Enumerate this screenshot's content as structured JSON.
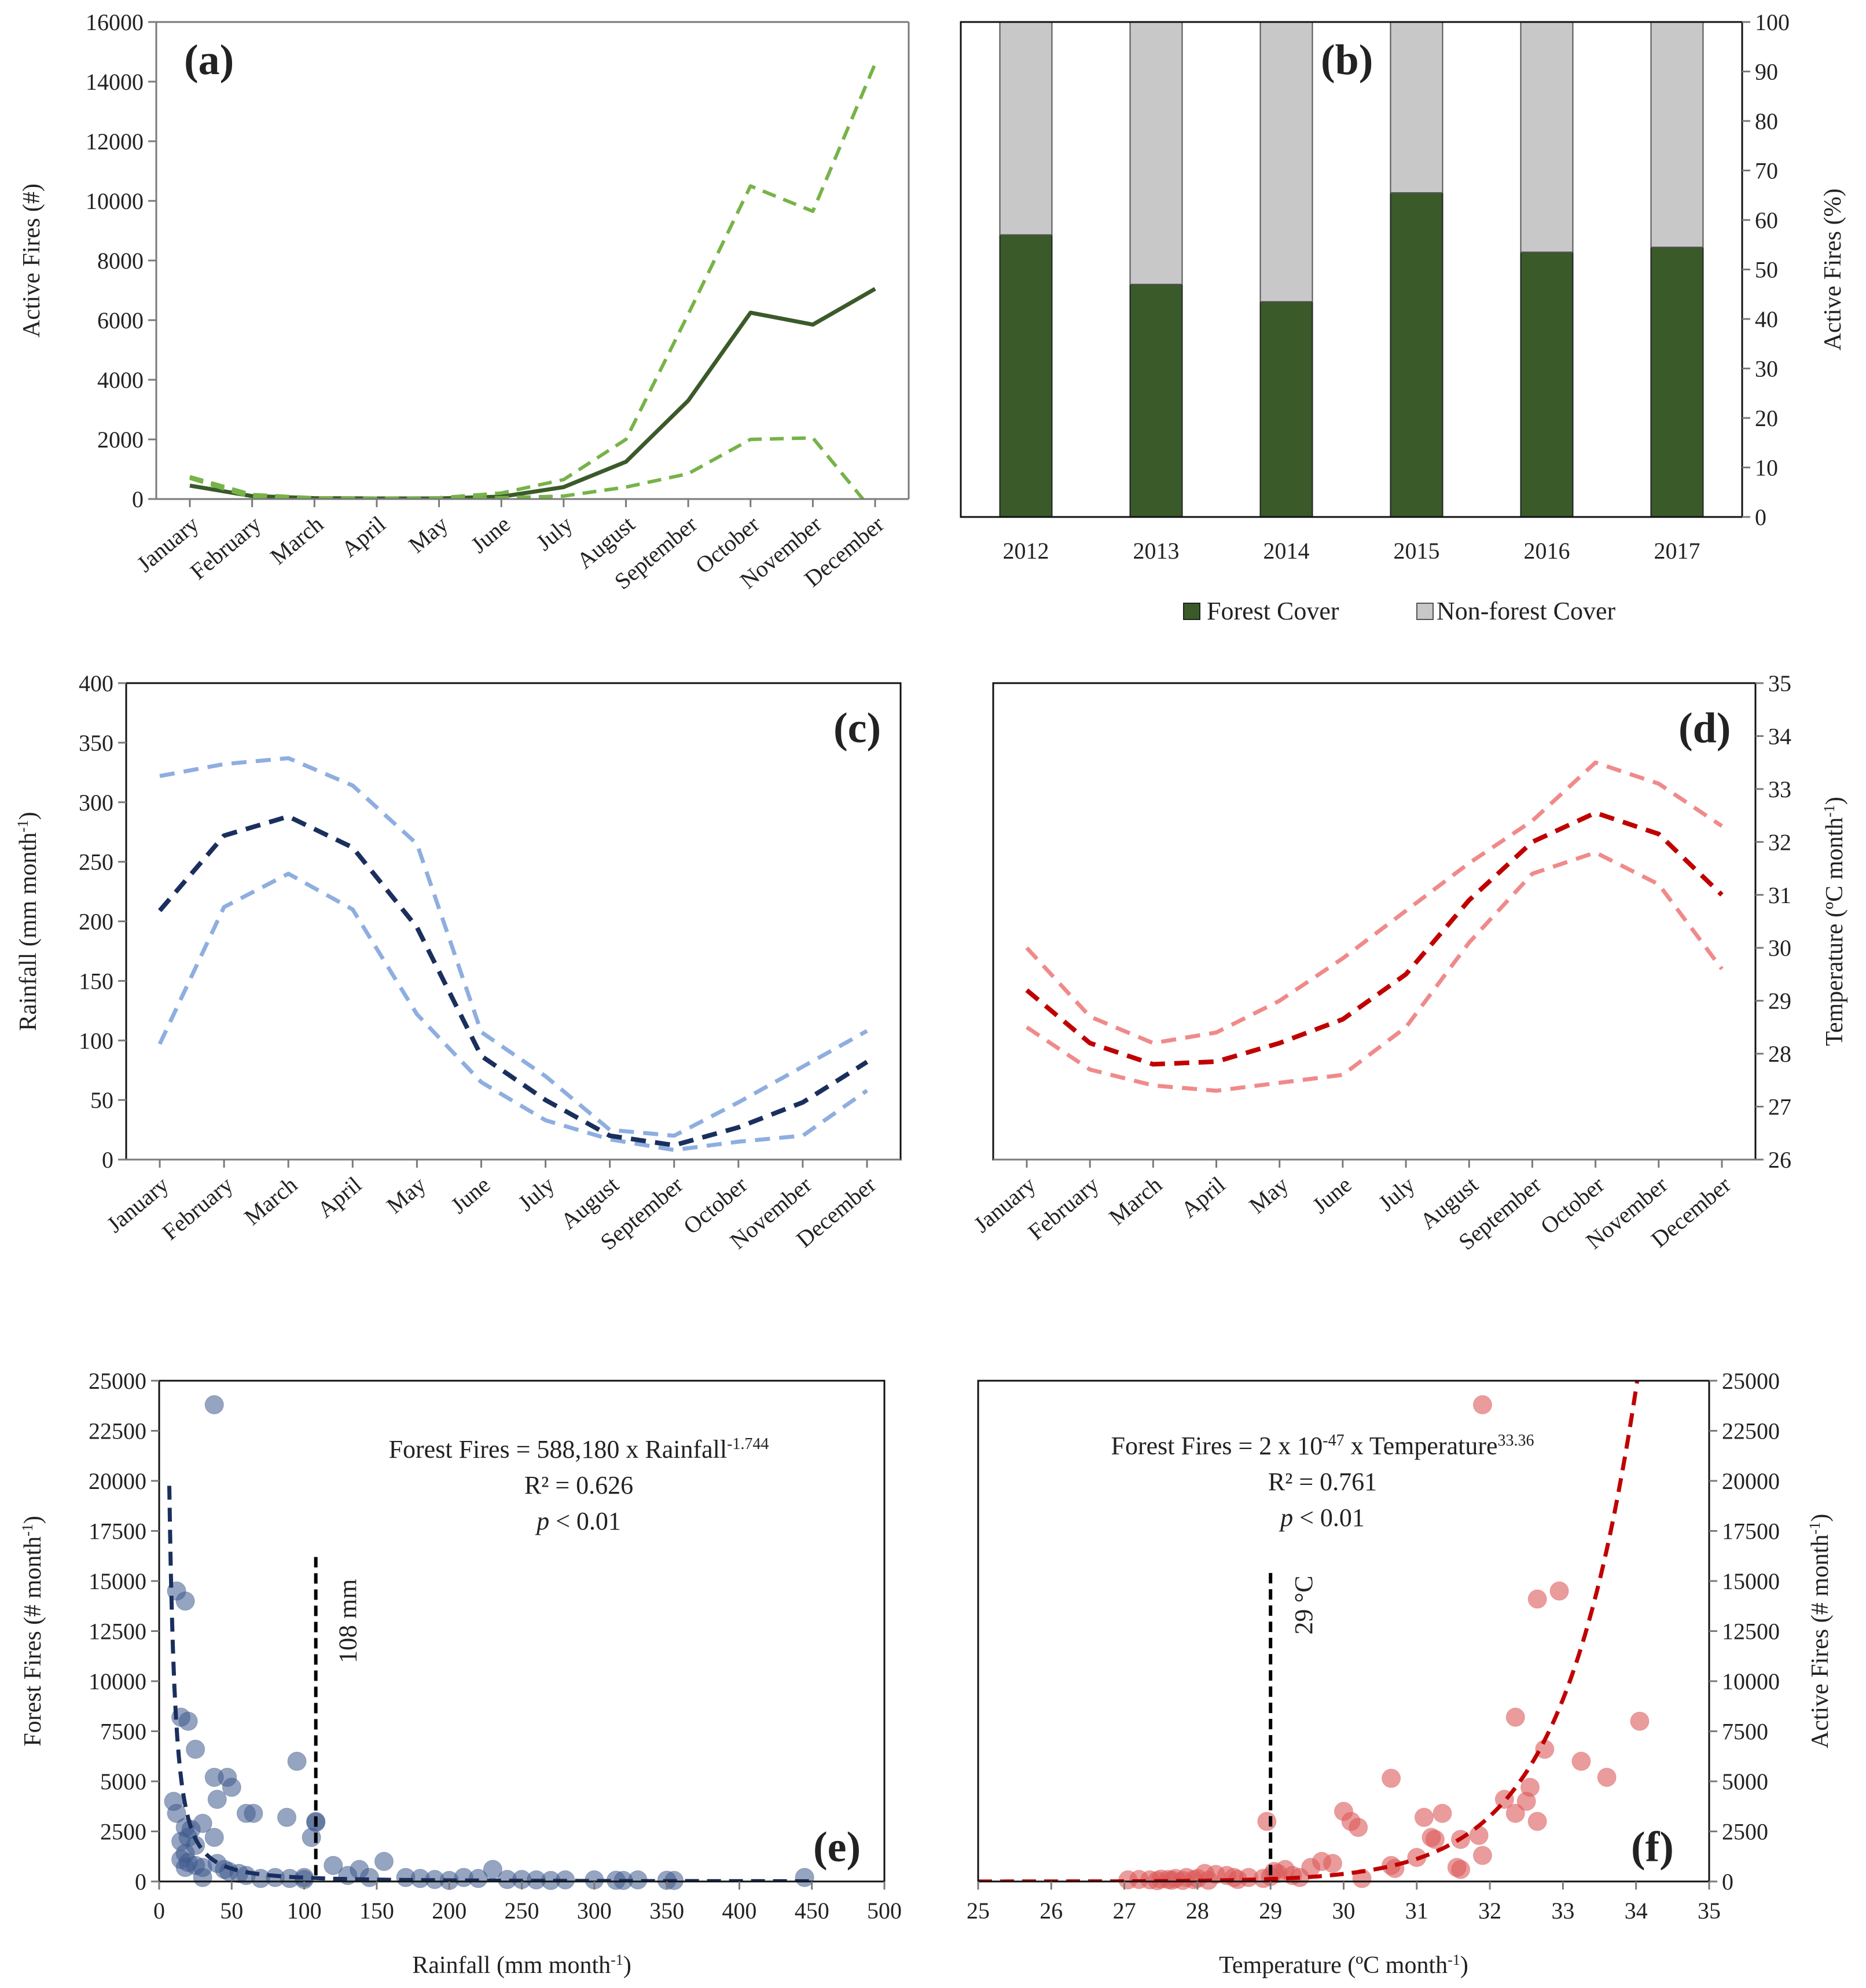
{
  "months": [
    "January",
    "February",
    "March",
    "April",
    "May",
    "June",
    "July",
    "August",
    "September",
    "October",
    "November",
    "December"
  ],
  "colors": {
    "forest_green": "#3b5a2a",
    "light_green": "#76b348",
    "grey_bar": "#c8c8c8",
    "navy": "#1a2f5e",
    "light_blue": "#8eaee0",
    "dark_red": "#c00000",
    "light_red": "#f08a8a",
    "scatter_blue": "#3e5a8c",
    "scatter_red": "#dc5a5a"
  },
  "chart_data": [
    {
      "id": "a",
      "panel_label": "(a)",
      "type": "line",
      "ylabel": "Active Fires (#)",
      "ylim": [
        0,
        16000
      ],
      "yticks": [
        "0",
        "2000",
        "4000",
        "6000",
        "8000",
        "10000",
        "12000",
        "14000",
        "16000"
      ],
      "series": [
        {
          "name": "mean",
          "style": "solid",
          "values": [
            450,
            100,
            30,
            20,
            20,
            80,
            400,
            1250,
            3300,
            6250,
            5850,
            7050
          ]
        },
        {
          "name": "upper",
          "style": "dashed",
          "values": [
            750,
            150,
            40,
            30,
            40,
            200,
            650,
            2000,
            6200,
            10500,
            9650,
            14600
          ]
        },
        {
          "name": "lower",
          "style": "dashed",
          "values": [
            700,
            50,
            20,
            10,
            10,
            40,
            100,
            400,
            850,
            2000,
            2050,
            -500
          ]
        }
      ]
    },
    {
      "id": "b",
      "panel_label": "(b)",
      "type": "bar",
      "stacked": true,
      "ylabel": "Active Fires (%)",
      "ylim": [
        0,
        100
      ],
      "yticks": [
        "0",
        "10",
        "20",
        "30",
        "40",
        "50",
        "60",
        "70",
        "80",
        "90",
        "100"
      ],
      "categories": [
        "2012",
        "2013",
        "2014",
        "2015",
        "2016",
        "2017"
      ],
      "series": [
        {
          "name": "Forest Cover",
          "values": [
            57,
            47,
            43.5,
            65.5,
            53.5,
            54.5
          ]
        },
        {
          "name": "Non-forest Cover",
          "values": [
            43,
            53,
            56.5,
            34.5,
            46.5,
            45.5
          ]
        }
      ],
      "legend": [
        "Forest Cover",
        "Non-forest Cover"
      ]
    },
    {
      "id": "c",
      "panel_label": "(c)",
      "type": "line",
      "ylabel": "Rainfall (mm month",
      "ylabel_sup": "-1",
      "ylabel_end": ")",
      "ylim": [
        0,
        400
      ],
      "yticks": [
        "0",
        "50",
        "100",
        "150",
        "200",
        "250",
        "300",
        "350",
        "400"
      ],
      "series": [
        {
          "name": "mean",
          "values": [
            209,
            272,
            288,
            262,
            195,
            87,
            50,
            20,
            12,
            27,
            48,
            82
          ]
        },
        {
          "name": "upper",
          "values": [
            322,
            332,
            337,
            314,
            265,
            107,
            70,
            25,
            20,
            48,
            78,
            108
          ]
        },
        {
          "name": "lower",
          "values": [
            97,
            212,
            240,
            210,
            122,
            65,
            33,
            17,
            8,
            15,
            20,
            58
          ]
        }
      ]
    },
    {
      "id": "d",
      "panel_label": "(d)",
      "type": "line",
      "ylabel": "Temperature (ºC month",
      "ylabel_sup": "-1",
      "ylabel_end": ")",
      "ylim": [
        26,
        35
      ],
      "yticks": [
        "26",
        "27",
        "28",
        "29",
        "30",
        "31",
        "32",
        "33",
        "34",
        "35"
      ],
      "series": [
        {
          "name": "mean",
          "values": [
            29.2,
            28.2,
            27.8,
            27.85,
            28.2,
            28.65,
            29.5,
            30.9,
            32.0,
            32.55,
            32.15,
            31.0
          ]
        },
        {
          "name": "upper",
          "values": [
            30.0,
            28.7,
            28.2,
            28.4,
            29.0,
            29.8,
            30.7,
            31.6,
            32.4,
            33.5,
            33.1,
            32.3
          ]
        },
        {
          "name": "lower",
          "values": [
            28.5,
            27.7,
            27.4,
            27.3,
            27.45,
            27.6,
            28.5,
            30.1,
            31.4,
            31.8,
            31.2,
            29.6
          ]
        }
      ]
    },
    {
      "id": "e",
      "panel_label": "(e)",
      "type": "scatter",
      "xlabel": "Rainfall (mm month",
      "xlabel_sup": "-1",
      "xlabel_end": ")",
      "ylabel": "Forest Fires (# month",
      "ylabel_sup": "-1",
      "ylabel_end": ")",
      "xlim": [
        0,
        500
      ],
      "ylim": [
        0,
        25000
      ],
      "xticks": [
        "0",
        "50",
        "100",
        "150",
        "200",
        "250",
        "300",
        "350",
        "400",
        "450",
        "500"
      ],
      "yticks": [
        "0",
        "2500",
        "5000",
        "7500",
        "10000",
        "12500",
        "15000",
        "17500",
        "20000",
        "22500",
        "25000"
      ],
      "fit": {
        "a": 588180,
        "b": -1.744
      },
      "threshold": {
        "x": 108,
        "label": "108 mm"
      },
      "equation": {
        "pre": "Forest Fires = 588,180 x Rainfall",
        "sup": "-1.744",
        "r2": "R² = 0.626",
        "p_italic": "p",
        "p_rest": " < 0.01"
      },
      "points": [
        [
          38,
          23800
        ],
        [
          12,
          14500
        ],
        [
          18,
          14000
        ],
        [
          15,
          8200
        ],
        [
          20,
          8000
        ],
        [
          25,
          6600
        ],
        [
          95,
          6000
        ],
        [
          38,
          5200
        ],
        [
          47,
          5200
        ],
        [
          50,
          4700
        ],
        [
          10,
          4000
        ],
        [
          40,
          4100
        ],
        [
          12,
          3400
        ],
        [
          60,
          3400
        ],
        [
          65,
          3400
        ],
        [
          88,
          3200
        ],
        [
          108,
          3000
        ],
        [
          108,
          2950
        ],
        [
          30,
          2900
        ],
        [
          18,
          2700
        ],
        [
          22,
          2600
        ],
        [
          20,
          2200
        ],
        [
          38,
          2200
        ],
        [
          105,
          2200
        ],
        [
          15,
          2000
        ],
        [
          25,
          1800
        ],
        [
          18,
          1400
        ],
        [
          15,
          1100
        ],
        [
          20,
          950
        ],
        [
          40,
          900
        ],
        [
          25,
          800
        ],
        [
          30,
          700
        ],
        [
          18,
          700
        ],
        [
          45,
          600
        ],
        [
          48,
          500
        ],
        [
          55,
          400
        ],
        [
          60,
          300
        ],
        [
          30,
          200
        ],
        [
          100,
          200
        ],
        [
          90,
          150
        ],
        [
          120,
          800
        ],
        [
          138,
          600
        ],
        [
          155,
          1000
        ],
        [
          230,
          600
        ],
        [
          130,
          300
        ],
        [
          145,
          200
        ],
        [
          170,
          200
        ],
        [
          180,
          150
        ],
        [
          190,
          100
        ],
        [
          210,
          200
        ],
        [
          220,
          150
        ],
        [
          240,
          100
        ],
        [
          250,
          100
        ],
        [
          260,
          80
        ],
        [
          280,
          80
        ],
        [
          300,
          80
        ],
        [
          315,
          60
        ],
        [
          330,
          80
        ],
        [
          350,
          60
        ],
        [
          445,
          200
        ],
        [
          200,
          50
        ],
        [
          270,
          50
        ],
        [
          320,
          50
        ],
        [
          355,
          50
        ],
        [
          100,
          100
        ],
        [
          80,
          200
        ],
        [
          70,
          150
        ]
      ]
    },
    {
      "id": "f",
      "panel_label": "(f)",
      "type": "scatter",
      "xlabel": "Temperature (ºC month",
      "xlabel_sup": "-1",
      "xlabel_end": ")",
      "ylabel": "Active Fires (# month",
      "ylabel_sup": "-1",
      "ylabel_end": ")",
      "xlim": [
        25,
        35
      ],
      "ylim": [
        0,
        25000
      ],
      "xticks": [
        "25",
        "26",
        "27",
        "28",
        "29",
        "30",
        "31",
        "32",
        "33",
        "34",
        "35"
      ],
      "yticks": [
        "0",
        "2500",
        "5000",
        "7500",
        "10000",
        "12500",
        "15000",
        "17500",
        "20000",
        "22500",
        "25000"
      ],
      "fit": {
        "a": 2e-47,
        "b": 33.36
      },
      "threshold": {
        "x": 29,
        "label": "29 °C"
      },
      "equation": {
        "pre": "Forest Fires = 2 x 10",
        "sup1": "-47",
        "mid": " x Temperature",
        "sup2": "33.36",
        "r2": "R² = 0.761",
        "p_italic": "p",
        "p_rest": " < 0.01"
      },
      "points": [
        [
          31.9,
          23800
        ],
        [
          32.95,
          14500
        ],
        [
          32.65,
          14100
        ],
        [
          34.05,
          8000
        ],
        [
          32.35,
          8200
        ],
        [
          32.75,
          6600
        ],
        [
          33.25,
          6000
        ],
        [
          33.6,
          5200
        ],
        [
          30.65,
          5150
        ],
        [
          32.55,
          4700
        ],
        [
          32.5,
          4000
        ],
        [
          32.2,
          4100
        ],
        [
          32.35,
          3400
        ],
        [
          30.0,
          3500
        ],
        [
          31.1,
          3200
        ],
        [
          31.35,
          3400
        ],
        [
          30.1,
          3000
        ],
        [
          30.2,
          2700
        ],
        [
          32.65,
          3000
        ],
        [
          28.95,
          3000
        ],
        [
          31.2,
          2200
        ],
        [
          31.6,
          2100
        ],
        [
          31.85,
          2300
        ],
        [
          31.25,
          2100
        ],
        [
          31.0,
          1200
        ],
        [
          31.9,
          1300
        ],
        [
          29.7,
          1000
        ],
        [
          29.85,
          900
        ],
        [
          30.65,
          800
        ],
        [
          29.55,
          700
        ],
        [
          30.7,
          650
        ],
        [
          31.55,
          700
        ],
        [
          31.6,
          600
        ],
        [
          29.2,
          600
        ],
        [
          29.05,
          500
        ],
        [
          29.1,
          400
        ],
        [
          28.1,
          400
        ],
        [
          28.25,
          350
        ],
        [
          28.4,
          300
        ],
        [
          28.7,
          200
        ],
        [
          28.5,
          200
        ],
        [
          28.0,
          150
        ],
        [
          27.85,
          200
        ],
        [
          27.7,
          150
        ],
        [
          27.6,
          100
        ],
        [
          27.5,
          120
        ],
        [
          27.35,
          80
        ],
        [
          27.2,
          100
        ],
        [
          27.05,
          80
        ],
        [
          27.95,
          90
        ],
        [
          28.55,
          100
        ],
        [
          28.9,
          150
        ],
        [
          29.3,
          300
        ],
        [
          29.0,
          250
        ],
        [
          30.25,
          150
        ],
        [
          29.4,
          200
        ],
        [
          27.8,
          50
        ],
        [
          27.65,
          60
        ],
        [
          28.15,
          60
        ],
        [
          27.45,
          40
        ]
      ]
    }
  ]
}
